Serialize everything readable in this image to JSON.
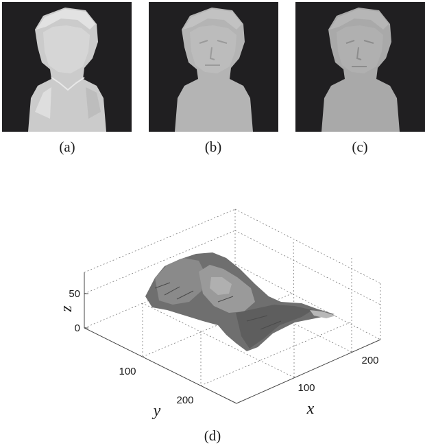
{
  "captions": {
    "a": "(a)",
    "b": "(b)",
    "c": "(c)",
    "d": "(d)"
  },
  "chart_data": {
    "type": "surface",
    "z_ticks": [
      "0",
      "50"
    ],
    "y_ticks": [
      "100",
      "200"
    ],
    "x_ticks": [
      "100",
      "200"
    ],
    "xlabel": "x",
    "ylabel": "y",
    "zlabel": "z",
    "grid": true
  },
  "colors": {
    "panel_bg": "#201f21",
    "bust_a": "#c9c9c9",
    "bust_b": "#b3b3b3",
    "bust_c": "#a9a9a9",
    "surface": "#6f6f6f"
  }
}
